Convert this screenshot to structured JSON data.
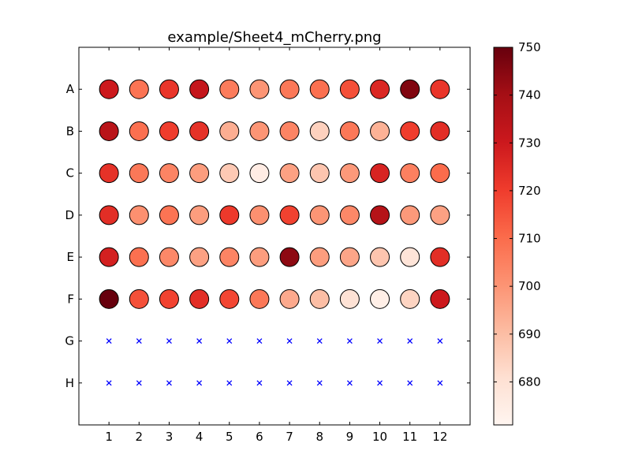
{
  "chart_data": {
    "type": "scatter",
    "title": "example/Sheet4_mCherry.png",
    "xlabel": "",
    "ylabel": "",
    "x_ticks": [
      "1",
      "2",
      "3",
      "4",
      "5",
      "6",
      "7",
      "8",
      "9",
      "10",
      "11",
      "12"
    ],
    "y_ticks": [
      "A",
      "B",
      "C",
      "D",
      "E",
      "F",
      "G",
      "H"
    ],
    "xlim": [
      0,
      13
    ],
    "ylim": [
      0,
      9
    ],
    "colorbar": {
      "min": 671,
      "max": 750,
      "ticks": [
        "680",
        "690",
        "700",
        "710",
        "720",
        "730",
        "740",
        "750"
      ],
      "tick_values": [
        680,
        690,
        700,
        710,
        720,
        730,
        740,
        750
      ],
      "colormap": "Reds"
    },
    "rows": [
      {
        "row": "A",
        "values": [
          730,
          708,
          722,
          732,
          706,
          700,
          707,
          709,
          716,
          726,
          746,
          722
        ]
      },
      {
        "row": "B",
        "values": [
          735,
          709,
          720,
          723,
          694,
          700,
          704,
          685,
          707,
          693,
          720,
          724
        ]
      },
      {
        "row": "C",
        "values": [
          723,
          707,
          704,
          698,
          687,
          675,
          697,
          688,
          699,
          727,
          705,
          710
        ]
      },
      {
        "row": "D",
        "values": [
          724,
          701,
          708,
          698,
          721,
          701,
          719,
          700,
          703,
          736,
          699,
          697
        ]
      },
      {
        "row": "E",
        "values": [
          728,
          709,
          703,
          697,
          704,
          698,
          744,
          698,
          696,
          688,
          679,
          724
        ]
      },
      {
        "row": "F",
        "values": [
          750,
          716,
          719,
          724,
          718,
          707,
          695,
          690,
          680,
          674,
          684,
          730
        ]
      },
      {
        "row": "G",
        "values": [
          null,
          null,
          null,
          null,
          null,
          null,
          null,
          null,
          null,
          null,
          null,
          null
        ]
      },
      {
        "row": "H",
        "values": [
          null,
          null,
          null,
          null,
          null,
          null,
          null,
          null,
          null,
          null,
          null,
          null
        ]
      }
    ],
    "empty_marker_color": "#0000ff",
    "grid": false,
    "legend": "none"
  }
}
